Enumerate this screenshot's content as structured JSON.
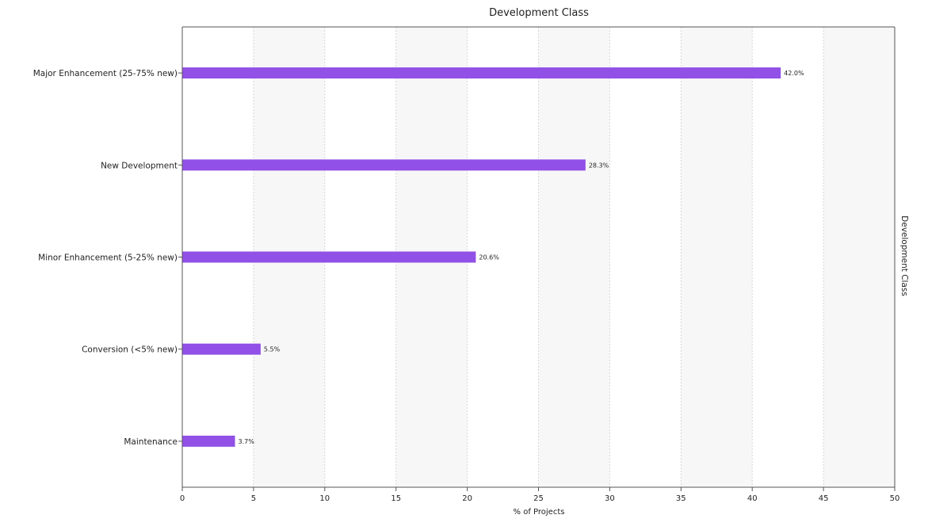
{
  "chart_data": {
    "type": "bar",
    "orientation": "horizontal",
    "title": "Development Class",
    "xlabel": "% of Projects",
    "right_label": "Development Class",
    "categories": [
      "Major Enhancement (25-75% new)",
      "New Development",
      "Minor Enhancement (5-25% new)",
      "Conversion (<5% new)",
      "Maintenance"
    ],
    "values": [
      42.0,
      28.3,
      20.6,
      5.5,
      3.7
    ],
    "value_labels": [
      "42.0%",
      "28.3%",
      "20.6%",
      "5.5%",
      "3.7%"
    ],
    "xlim": [
      0,
      50
    ],
    "xticks": [
      0,
      5,
      10,
      15,
      20,
      25,
      30,
      35,
      40,
      45,
      50
    ],
    "xtick_labels": [
      "0",
      "5",
      "10",
      "15",
      "20",
      "25",
      "30",
      "35",
      "40",
      "45",
      "50"
    ],
    "grid": true,
    "bar_color": "#9150e6",
    "band_color": "#f7f7f7",
    "grid_color": "#d6d6d6",
    "axis_color": "#555555"
  }
}
